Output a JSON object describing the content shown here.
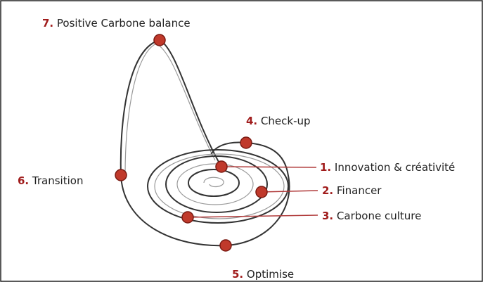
{
  "nodes": [
    {
      "number": "1.",
      "label": "Innovation & créativité"
    },
    {
      "number": "2.",
      "label": "Financer"
    },
    {
      "number": "3.",
      "label": "Carbone culture"
    },
    {
      "number": "4.",
      "label": "Check-up"
    },
    {
      "number": "5.",
      "label": "Optimise"
    },
    {
      "number": "6.",
      "label": "Transition"
    },
    {
      "number": "7.",
      "label": "Positive Carbone balance"
    }
  ]
}
